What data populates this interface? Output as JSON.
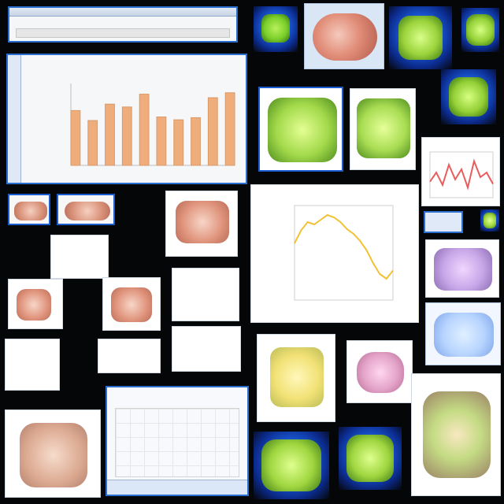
{
  "colors": {
    "background": "#050608",
    "window_border": "#2a6fd0",
    "bar_fill": "#f0ad7c",
    "line_orange": "#f1c232",
    "tissue_green": "#8fcf3a",
    "tissue_pink": "#e4a3c9",
    "tissue_brown": "#c58d66"
  },
  "icons": [
    "top-toolbar-window",
    "bar-chart-window",
    "line-chart-window",
    "small-line-chart-window",
    "bottom-chart-window",
    "tissue-images"
  ],
  "chart_data": [
    {
      "type": "bar",
      "categories": [
        "",
        "",
        "",
        "",
        "",
        "",
        "",
        "",
        "",
        ""
      ],
      "values": [
        0.77,
        0.63,
        0.86,
        0.82,
        1.0,
        0.68,
        0.64,
        0.67,
        0.95,
        1.02
      ],
      "title": "",
      "xlabel": "",
      "ylabel": "",
      "ylim": [
        0,
        1.15
      ]
    },
    {
      "type": "line",
      "x": [
        0,
        1,
        2,
        3,
        4,
        5,
        6,
        7,
        8,
        9,
        10,
        11,
        12,
        13,
        14,
        15
      ],
      "values": [
        0.68,
        0.79,
        0.86,
        0.84,
        0.88,
        0.92,
        0.9,
        0.86,
        0.8,
        0.76,
        0.7,
        0.62,
        0.51,
        0.42,
        0.38,
        0.45
      ],
      "title": "",
      "xlabel": "",
      "ylabel": "",
      "ylim": [
        0.2,
        1.0
      ]
    },
    {
      "type": "line",
      "x": [
        0,
        1,
        2,
        3,
        4,
        5,
        6,
        7,
        8,
        9,
        10
      ],
      "values": [
        0.35,
        0.55,
        0.28,
        0.72,
        0.4,
        0.62,
        0.22,
        0.8,
        0.45,
        0.55,
        0.3
      ],
      "title": "",
      "xlabel": "",
      "ylabel": "",
      "ylim": [
        0,
        1.0
      ]
    }
  ],
  "windows": {
    "top": {
      "title": ""
    },
    "bar_chart": {
      "title": ""
    },
    "line_chart": {
      "title": ""
    },
    "bottom_chart": {
      "title": ""
    }
  }
}
